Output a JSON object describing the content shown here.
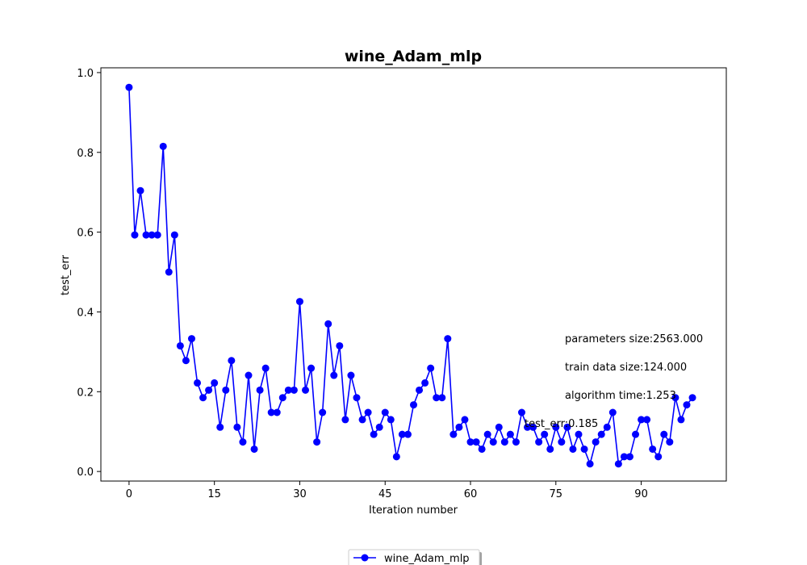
{
  "chart_data": {
    "type": "line",
    "title": "wine_Adam_mlp",
    "xlabel": "Iteration number",
    "ylabel": "test_err",
    "xlim": [
      -4.95,
      104.95
    ],
    "ylim": [
      -0.024,
      1.012
    ],
    "xticks": [
      0,
      15,
      30,
      45,
      60,
      75,
      90
    ],
    "yticks": [
      0.0,
      0.2,
      0.4,
      0.6,
      0.8,
      1.0
    ],
    "ytick_labels": [
      "0.0",
      "0.2",
      "0.4",
      "0.6",
      "0.8",
      "1.0"
    ],
    "grid": false,
    "legend_position": "bottom-center",
    "series": [
      {
        "name": "wine_Adam_mlp",
        "color": "#0000ff",
        "marker": "circle",
        "x": [
          0,
          1,
          2,
          3,
          4,
          5,
          6,
          7,
          8,
          9,
          10,
          11,
          12,
          13,
          14,
          15,
          16,
          17,
          18,
          19,
          20,
          21,
          22,
          23,
          24,
          25,
          26,
          27,
          28,
          29,
          30,
          31,
          32,
          33,
          34,
          35,
          36,
          37,
          38,
          39,
          40,
          41,
          42,
          43,
          44,
          45,
          46,
          47,
          48,
          49,
          50,
          51,
          52,
          53,
          54,
          55,
          56,
          57,
          58,
          59,
          60,
          61,
          62,
          63,
          64,
          65,
          66,
          67,
          68,
          69,
          70,
          71,
          72,
          73,
          74,
          75,
          76,
          77,
          78,
          79,
          80,
          81,
          82,
          83,
          84,
          85,
          86,
          87,
          88,
          89,
          90,
          91,
          92,
          93,
          94,
          95,
          96,
          97,
          98,
          99
        ],
        "values": [
          0.963,
          0.593,
          0.704,
          0.593,
          0.593,
          0.593,
          0.815,
          0.5,
          0.593,
          0.315,
          0.278,
          0.333,
          0.222,
          0.185,
          0.204,
          0.222,
          0.111,
          0.204,
          0.278,
          0.111,
          0.074,
          0.241,
          0.056,
          0.204,
          0.259,
          0.148,
          0.148,
          0.185,
          0.204,
          0.204,
          0.426,
          0.204,
          0.259,
          0.074,
          0.148,
          0.37,
          0.241,
          0.315,
          0.13,
          0.241,
          0.185,
          0.13,
          0.148,
          0.093,
          0.111,
          0.148,
          0.13,
          0.037,
          0.093,
          0.093,
          0.167,
          0.204,
          0.222,
          0.259,
          0.185,
          0.185,
          0.333,
          0.093,
          0.111,
          0.13,
          0.074,
          0.074,
          0.056,
          0.093,
          0.074,
          0.111,
          0.074,
          0.093,
          0.074,
          0.148,
          0.111,
          0.111,
          0.074,
          0.093,
          0.056,
          0.111,
          0.074,
          0.111,
          0.056,
          0.093,
          0.056,
          0.019,
          0.074,
          0.093,
          0.111,
          0.148,
          0.019,
          0.037,
          0.037,
          0.093,
          0.13,
          0.13,
          0.056,
          0.037,
          0.093,
          0.074,
          0.185,
          0.13,
          0.167,
          0.185
        ]
      }
    ],
    "annotations": [
      "parameters size:2563.000",
      "train data size:124.000",
      "algorithm time:1.253",
      "test_err:0.185"
    ]
  }
}
